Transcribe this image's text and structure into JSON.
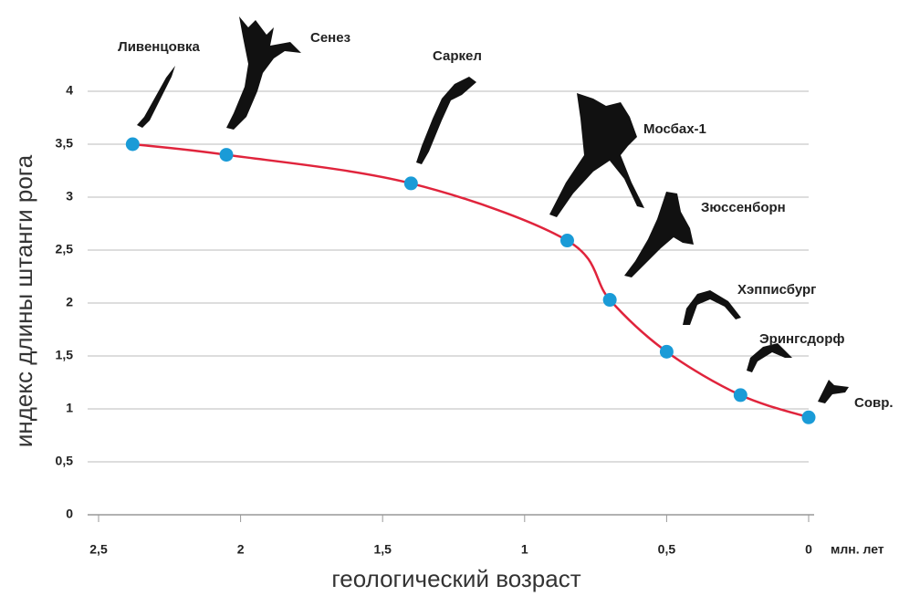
{
  "chart_data": {
    "type": "line",
    "x_label": "геологический возраст",
    "y_label": "индекс длины штанги рога",
    "x_unit": "млн. лет",
    "x": [
      2.38,
      2.05,
      1.4,
      0.85,
      0.7,
      0.5,
      0.24,
      0.0
    ],
    "values": [
      3.5,
      3.4,
      3.13,
      2.59,
      2.03,
      1.54,
      1.13,
      0.92
    ],
    "labels": [
      "Ливенцовка",
      "Сенез",
      "Саркел",
      "Мосбах-1",
      "Зюссенборн",
      "Хэпписбург",
      "Эрингсдорф",
      "Совр."
    ],
    "line_color": "#e0243c",
    "marker_color": "#1a9bd7",
    "xlim": [
      2.5,
      0
    ],
    "ylim": [
      0,
      4
    ],
    "xticks": [
      {
        "value": 2.5,
        "label": "2,5"
      },
      2,
      {
        "value": 1.5,
        "label": "1,5"
      },
      1,
      {
        "value": 0.5,
        "label": "0,5"
      },
      0
    ],
    "yticks": [
      0,
      {
        "value": 0.5,
        "label": "0,5"
      },
      1,
      {
        "value": 1.5,
        "label": "1,5"
      },
      2,
      {
        "value": 2.5,
        "label": "2,5"
      },
      3,
      {
        "value": 3.5,
        "label": "3,5"
      },
      4
    ],
    "grid": true
  }
}
